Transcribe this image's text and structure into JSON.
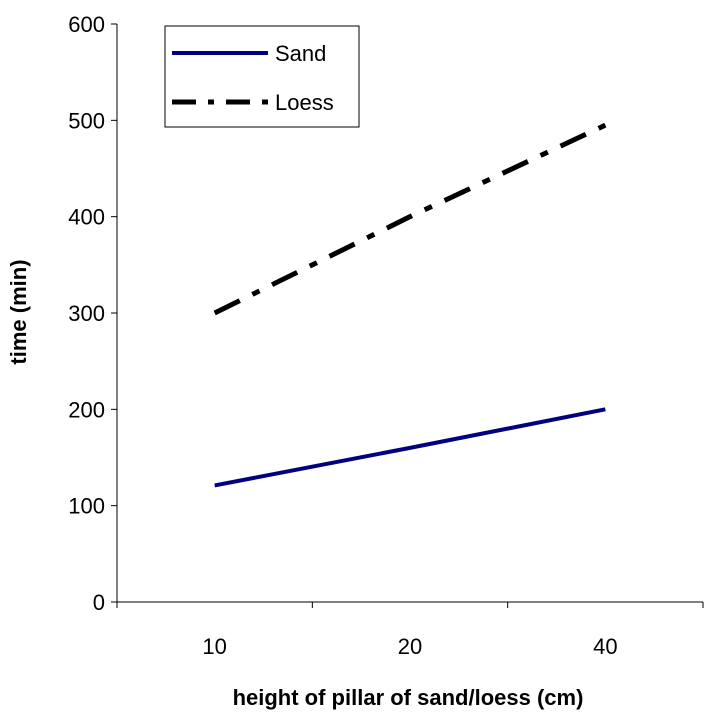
{
  "chart_data": {
    "type": "line",
    "title": "",
    "xlabel": "height of pillar of sand/loess (cm)",
    "ylabel": "time (min)",
    "categories": [
      "10",
      "20",
      "40"
    ],
    "ylim": [
      0,
      600
    ],
    "yticks": [
      "0",
      "100",
      "200",
      "300",
      "400",
      "500",
      "600"
    ],
    "grid": false,
    "legend_position": "top-left",
    "series": [
      {
        "name": "Sand",
        "values": [
          121,
          160,
          200
        ],
        "color": "#000080",
        "line_style": "solid"
      },
      {
        "name": "Loess",
        "values": [
          300,
          400,
          495
        ],
        "color": "#000000",
        "line_style": "dash-dot"
      }
    ]
  }
}
